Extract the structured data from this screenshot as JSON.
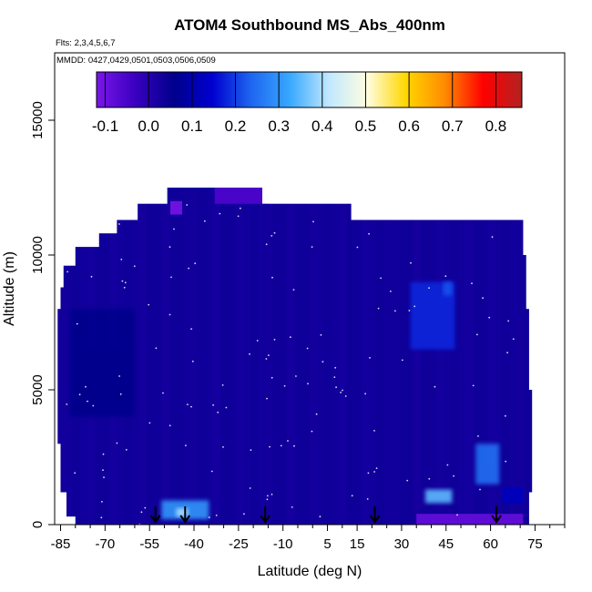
{
  "chart_data": {
    "type": "heatmap",
    "title": "ATOM4 Southbound MS_Abs_400nm",
    "annotations": [
      "Flts: 2,3,4,5,6,7",
      "MMDD: 0427,0429,0501,0503,0506,0509"
    ],
    "xlabel": "Latitude (deg N)",
    "ylabel": "Altitude (m)",
    "xlim": [
      -87,
      85
    ],
    "ylim": [
      0,
      17500
    ],
    "x_ticks": [
      -85,
      -70,
      -55,
      -40,
      -25,
      -10,
      5,
      15,
      30,
      45,
      60,
      75
    ],
    "x_tick_labels": [
      "-85",
      "-70",
      "-55",
      "-40",
      "-25",
      "-10",
      "5",
      "15",
      "30",
      "45",
      "60",
      "75"
    ],
    "y_ticks": [
      0,
      5000,
      10000,
      15000
    ],
    "y_tick_labels": [
      "0",
      "5000",
      "10000",
      "15000"
    ],
    "colorbar": {
      "range": [
        -0.12,
        0.86
      ],
      "ticks": [
        -0.1,
        0.0,
        0.1,
        0.2,
        0.3,
        0.4,
        0.5,
        0.6,
        0.7,
        0.8
      ],
      "tick_labels": [
        "-0.1",
        "0.0",
        "0.1",
        "0.2",
        "0.3",
        "0.4",
        "0.5",
        "0.6",
        "0.7",
        "0.8"
      ],
      "colors": [
        "#7a16e8",
        "#3a00c0",
        "#00008b",
        "#0000d0",
        "#1e66f0",
        "#38a8ff",
        "#c0e8ff",
        "#fffde0",
        "#ffd700",
        "#ff8c00",
        "#ff0000",
        "#b22222"
      ]
    },
    "field_background_value": 0.03,
    "regions": [
      {
        "name": "high-altitude top strip",
        "lat": [
          -33,
          -15
        ],
        "alt": [
          11900,
          12500
        ],
        "value": -0.05
      },
      {
        "name": "upper-left purple patch",
        "lat": [
          -48,
          -44
        ],
        "alt": [
          11500,
          12000
        ],
        "value": -0.1
      },
      {
        "name": "northern upper plume",
        "lat": [
          33,
          48
        ],
        "alt": [
          6500,
          9000
        ],
        "value": 0.18
      },
      {
        "name": "northern plume core",
        "lat": [
          44,
          47
        ],
        "alt": [
          8500,
          9000
        ],
        "value": 0.22
      },
      {
        "name": "southern mid-lat lighter band",
        "lat": [
          -82,
          -60
        ],
        "alt": [
          4000,
          8000
        ],
        "value": 0.06
      },
      {
        "name": "northern boundary layer bright spot",
        "lat": [
          38,
          47
        ],
        "alt": [
          800,
          1300
        ],
        "value": 0.35
      },
      {
        "name": "northern boundary layer cyan",
        "lat": [
          55,
          63
        ],
        "alt": [
          1500,
          3000
        ],
        "value": 0.25
      },
      {
        "name": "southern surface bright layer",
        "lat": [
          -51,
          -35
        ],
        "alt": [
          200,
          900
        ],
        "value": 0.3
      },
      {
        "name": "southern surface core",
        "lat": [
          -46,
          -42
        ],
        "alt": [
          300,
          600
        ],
        "value": 0.4
      },
      {
        "name": "northern surface purple",
        "lat": [
          35,
          71
        ],
        "alt": [
          0,
          400
        ],
        "value": -0.08
      },
      {
        "name": "northern low strip",
        "lat": [
          64,
          71
        ],
        "alt": [
          800,
          1400
        ],
        "value": 0.12
      }
    ],
    "profile_arrows_lat": [
      -53,
      -43,
      -16,
      21,
      62
    ]
  }
}
